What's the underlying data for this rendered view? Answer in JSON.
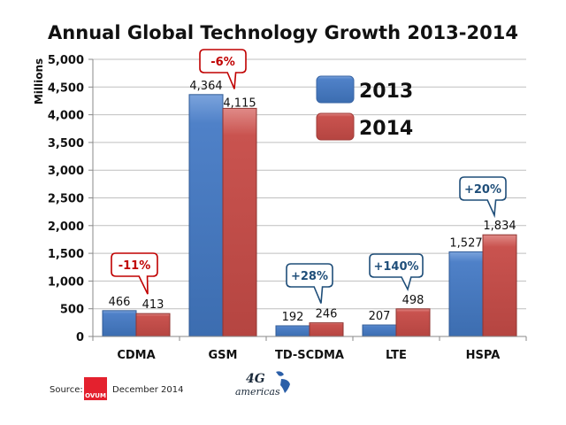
{
  "chart_data": {
    "type": "bar",
    "title": "Annual Global Technology Growth  2013-2014",
    "xlabel": "",
    "ylabel": "Millions",
    "ylim": [
      0,
      5000
    ],
    "yticks": [
      0,
      500,
      1000,
      1500,
      2000,
      2500,
      3000,
      3500,
      4000,
      4500,
      5000
    ],
    "ytick_labels": [
      "0",
      "500",
      "1,000",
      "1,500",
      "2,000",
      "2,500",
      "3,000",
      "3,500",
      "4,000",
      "4,500",
      "5,000"
    ],
    "grid": true,
    "categories": [
      "CDMA",
      "GSM",
      "TD-SCDMA",
      "LTE",
      "HSPA"
    ],
    "series": [
      {
        "name": "2013",
        "color": "#4a7ebb",
        "values": [
          466,
          4364,
          192,
          207,
          1527
        ],
        "labels": [
          "466",
          "4,364",
          "192",
          "207",
          "1,527"
        ]
      },
      {
        "name": "2014",
        "color": "#c0504d",
        "values": [
          413,
          4115,
          246,
          498,
          1834
        ],
        "labels": [
          "413",
          "4,115",
          "246",
          "498",
          "1,834"
        ]
      }
    ],
    "annotations": [
      {
        "category": "CDMA",
        "text": "-11%",
        "color": "#c00000"
      },
      {
        "category": "GSM",
        "text": "-6%",
        "color": "#c00000"
      },
      {
        "category": "TD-SCDMA",
        "text": "+28%",
        "color": "#1f4e79"
      },
      {
        "category": "LTE",
        "text": "+140%",
        "color": "#1f4e79"
      },
      {
        "category": "HSPA",
        "text": "+20%",
        "color": "#1f4e79"
      }
    ],
    "legend": {
      "placement": "top-right-inside",
      "entries": [
        "2013",
        "2014"
      ]
    }
  },
  "footer": {
    "source_label": "Source:",
    "source_logo": "OVUM",
    "date": "December 2014",
    "brand_logo_line1": "4G",
    "brand_logo_line2": "americas"
  }
}
